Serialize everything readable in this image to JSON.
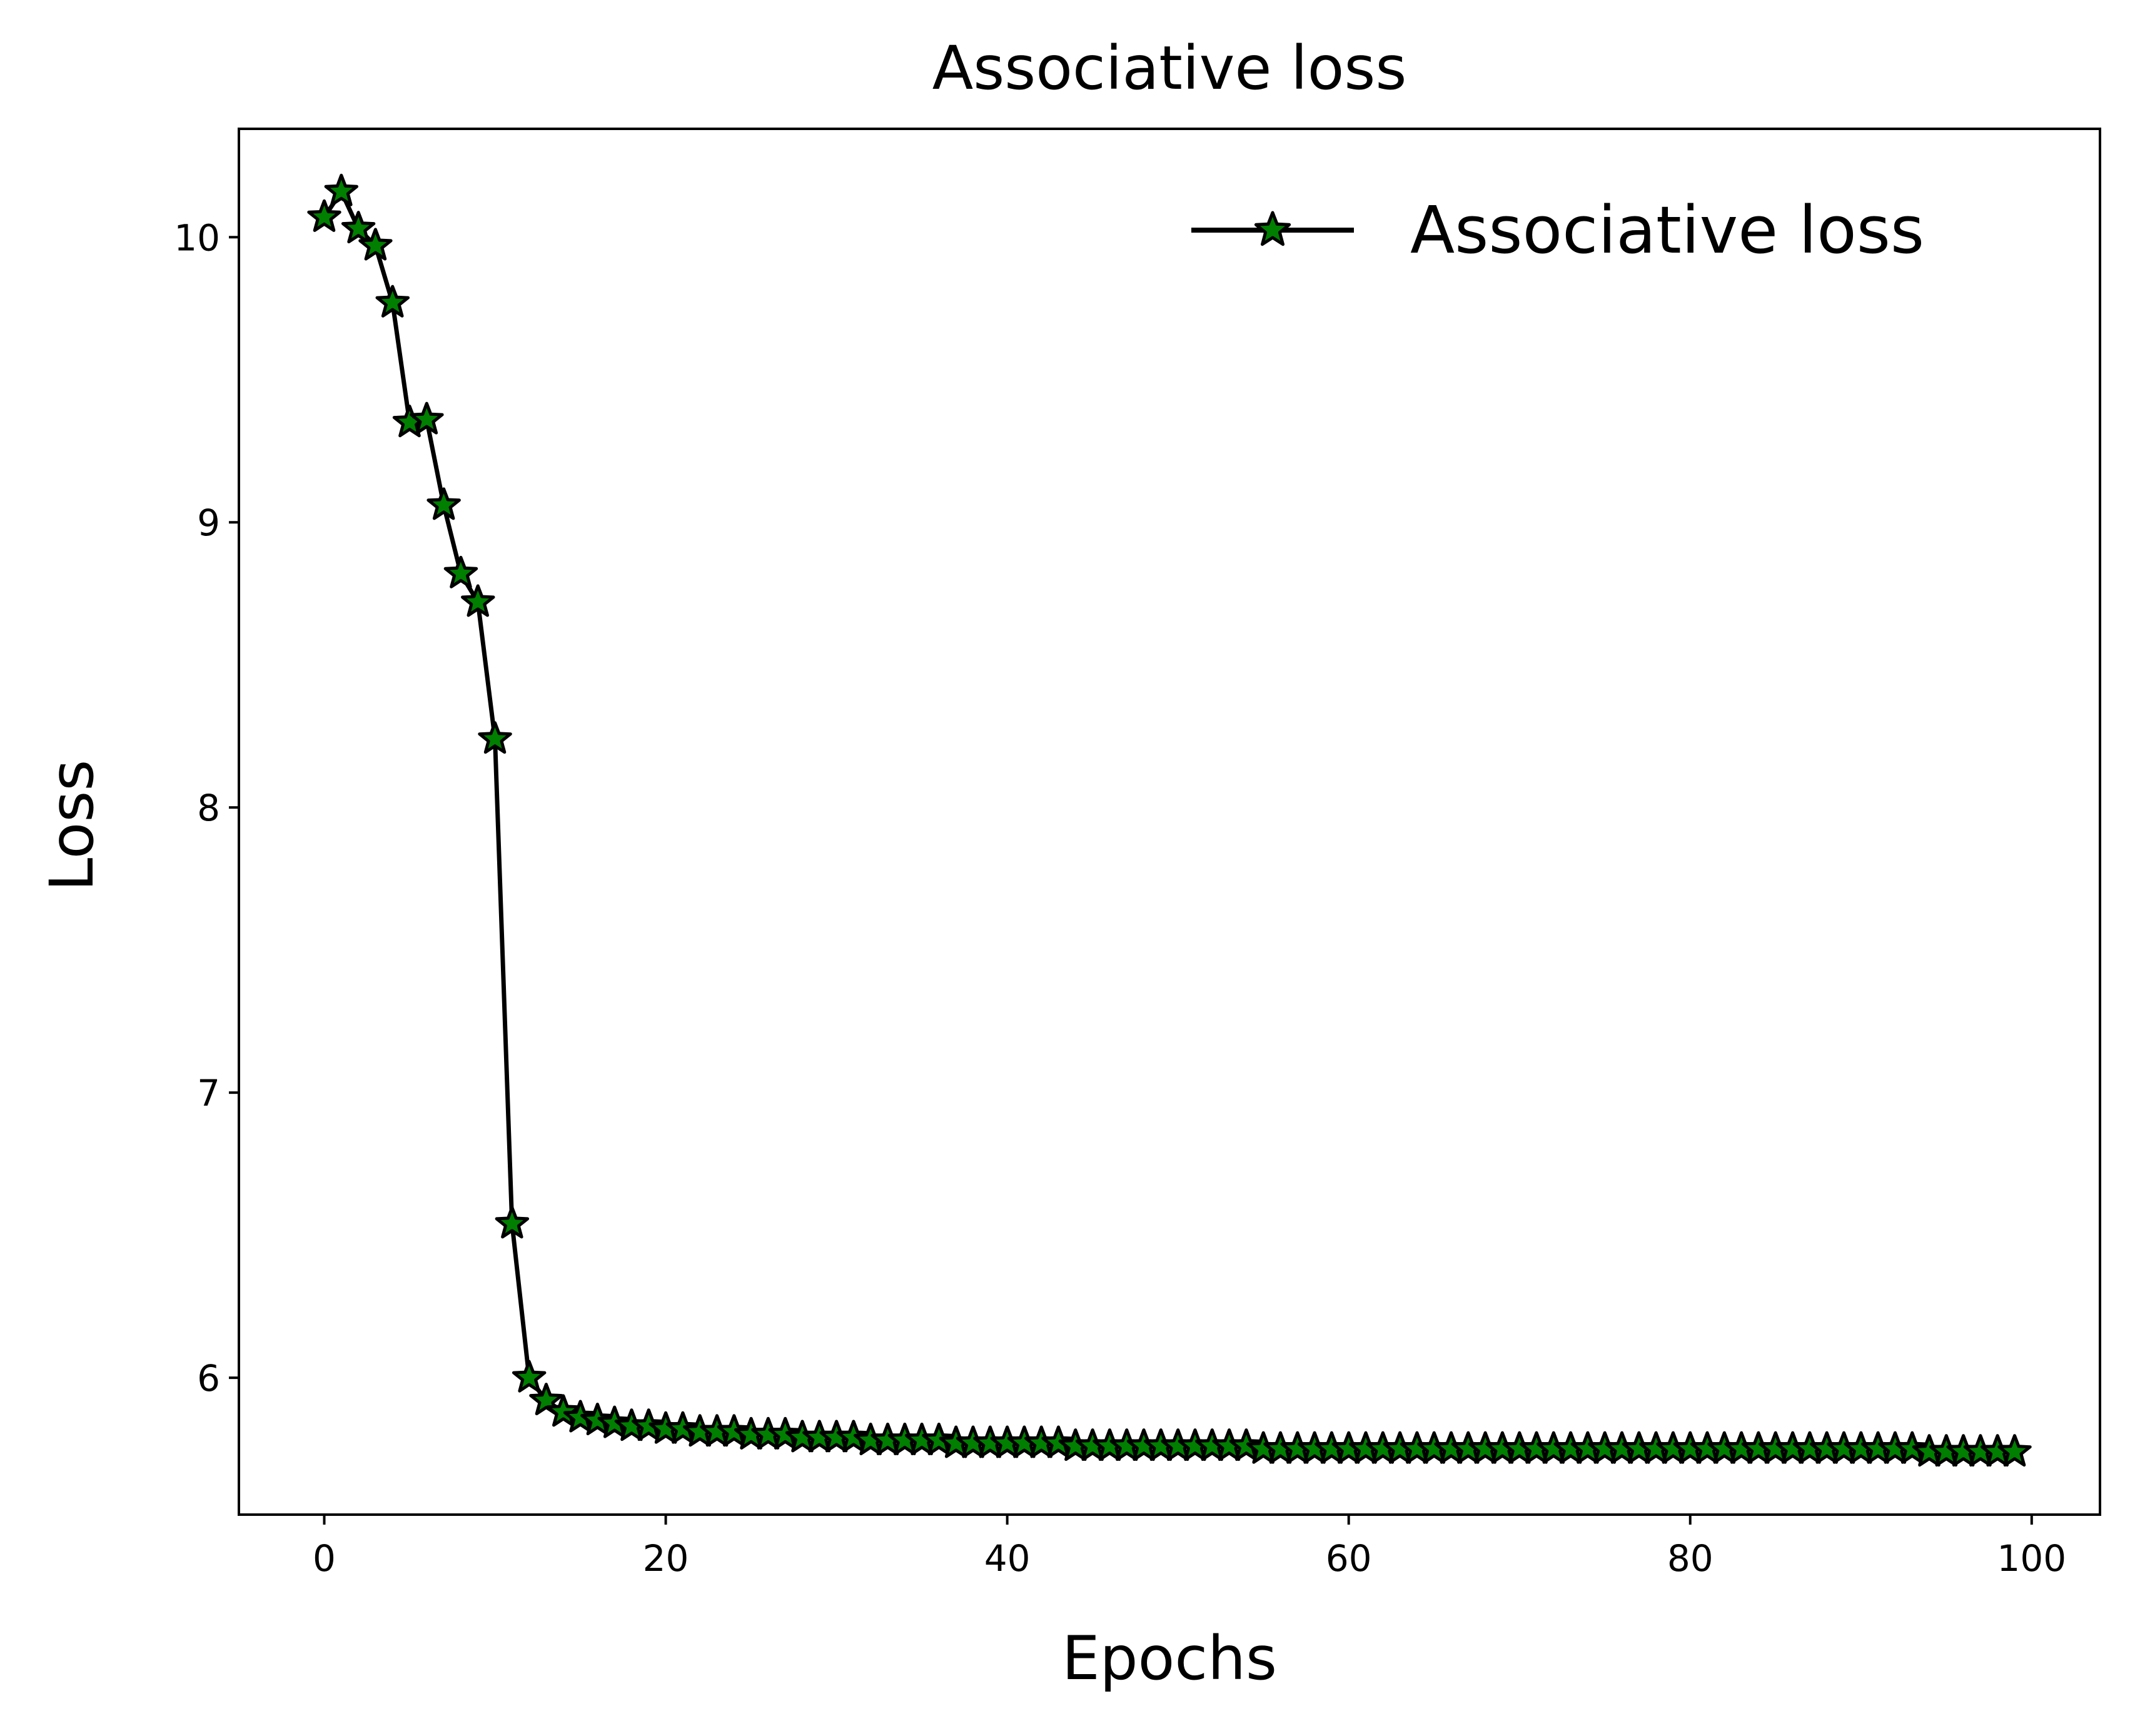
{
  "chart_data": {
    "type": "line",
    "title": "Associative loss",
    "xlabel": "Epochs",
    "ylabel": "Loss",
    "xlim": [
      -5,
      104
    ],
    "ylim": [
      5.52,
      10.38
    ],
    "x_ticks": [
      0,
      20,
      40,
      60,
      80,
      100
    ],
    "y_ticks": [
      6,
      7,
      8,
      9,
      10
    ],
    "grid": false,
    "legend_position": "top-right",
    "series": [
      {
        "name": "Associative loss",
        "line_color": "#000000",
        "marker": "star",
        "marker_face_color": "#007f00",
        "marker_edge_color": "#000000",
        "x": [
          0,
          1,
          2,
          3,
          4,
          5,
          6,
          7,
          8,
          9,
          10,
          11,
          12,
          13,
          14,
          15,
          16,
          17,
          18,
          19,
          20,
          21,
          22,
          23,
          24,
          25,
          26,
          27,
          28,
          29,
          30,
          31,
          32,
          33,
          34,
          35,
          36,
          37,
          38,
          39,
          40,
          41,
          42,
          43,
          44,
          45,
          46,
          47,
          48,
          49,
          50,
          51,
          52,
          53,
          54,
          55,
          56,
          57,
          58,
          59,
          60,
          61,
          62,
          63,
          64,
          65,
          66,
          67,
          68,
          69,
          70,
          71,
          72,
          73,
          74,
          75,
          76,
          77,
          78,
          79,
          80,
          81,
          82,
          83,
          84,
          85,
          86,
          87,
          88,
          89,
          90,
          91,
          92,
          93,
          94,
          95,
          96,
          97,
          98,
          99
        ],
        "y": [
          10.07,
          10.16,
          10.03,
          9.97,
          9.77,
          9.35,
          9.36,
          9.06,
          8.82,
          8.72,
          8.24,
          6.54,
          6.0,
          5.92,
          5.88,
          5.86,
          5.85,
          5.84,
          5.83,
          5.83,
          5.82,
          5.82,
          5.81,
          5.81,
          5.81,
          5.8,
          5.8,
          5.8,
          5.79,
          5.79,
          5.79,
          5.79,
          5.78,
          5.78,
          5.78,
          5.78,
          5.78,
          5.77,
          5.77,
          5.77,
          5.77,
          5.77,
          5.77,
          5.77,
          5.76,
          5.76,
          5.76,
          5.76,
          5.76,
          5.76,
          5.76,
          5.76,
          5.76,
          5.76,
          5.76,
          5.75,
          5.75,
          5.75,
          5.75,
          5.75,
          5.75,
          5.75,
          5.75,
          5.75,
          5.75,
          5.75,
          5.75,
          5.75,
          5.75,
          5.75,
          5.75,
          5.75,
          5.75,
          5.75,
          5.75,
          5.75,
          5.75,
          5.75,
          5.75,
          5.75,
          5.75,
          5.75,
          5.75,
          5.75,
          5.75,
          5.75,
          5.75,
          5.75,
          5.75,
          5.75,
          5.75,
          5.75,
          5.75,
          5.75,
          5.74,
          5.74,
          5.74,
          5.74,
          5.74,
          5.74
        ]
      }
    ]
  }
}
